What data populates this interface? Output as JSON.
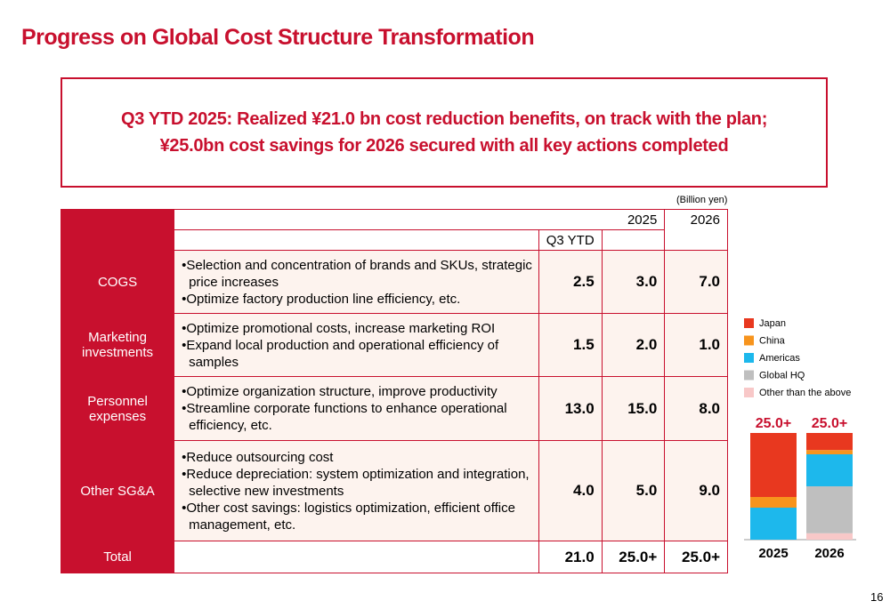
{
  "title": "Progress on Global Cost Structure Transformation",
  "banner": {
    "lines": [
      "Q3 YTD 2025: Realized ¥21.0 bn cost reduction benefits, on track with the plan;",
      "¥25.0bn cost savings for 2026 secured with all key actions completed"
    ]
  },
  "table": {
    "unit": "(Billion yen)",
    "header": {
      "y2025": "2025",
      "y2026": "2026",
      "q3ytd": "Q3 YTD"
    },
    "rows": [
      {
        "label": "COGS",
        "items": [
          "Selection and concentration of brands and SKUs, strategic price increases",
          "Optimize factory production line efficiency, etc."
        ],
        "q3ytd": "2.5",
        "y2025": "3.0",
        "y2026": "7.0"
      },
      {
        "label": "Marketing investments",
        "items": [
          "Optimize promotional costs, increase marketing ROI",
          "Expand local production and operational efficiency of samples"
        ],
        "q3ytd": "1.5",
        "y2025": "2.0",
        "y2026": "1.0"
      },
      {
        "label": "Personnel expenses",
        "items": [
          "Optimize organization structure, improve productivity",
          "Streamline corporate functions to enhance operational efficiency, etc."
        ],
        "q3ytd": "13.0",
        "y2025": "15.0",
        "y2026": "8.0"
      },
      {
        "label": "Other SG&A",
        "items": [
          "Reduce outsourcing cost",
          "Reduce depreciation: system optimization and integration, selective new investments",
          "Other cost savings: logistics optimization, efficient office management, etc."
        ],
        "q3ytd": "4.0",
        "y2025": "5.0",
        "y2026": "9.0"
      }
    ],
    "total": {
      "label": "Total",
      "q3ytd": "21.0",
      "y2025": "25.0+",
      "y2026": "25.0+"
    }
  },
  "chart_data": {
    "type": "stacked-bar",
    "categories": [
      "2025",
      "2026"
    ],
    "total_labels": [
      "25.0+",
      "25.0+"
    ],
    "series": [
      {
        "name": "Japan",
        "color": "#e8381f",
        "values": [
          15,
          4
        ]
      },
      {
        "name": "China",
        "color": "#f7941d",
        "values": [
          2.5,
          1
        ]
      },
      {
        "name": "Americas",
        "color": "#1db8ec",
        "values": [
          7.5,
          7.5
        ]
      },
      {
        "name": "Global HQ",
        "color": "#bfbfbf",
        "values": [
          0,
          11
        ]
      },
      {
        "name": "Other than the above",
        "color": "#f8c8c8",
        "values": [
          0,
          1.5
        ]
      }
    ]
  },
  "page_number": "16"
}
